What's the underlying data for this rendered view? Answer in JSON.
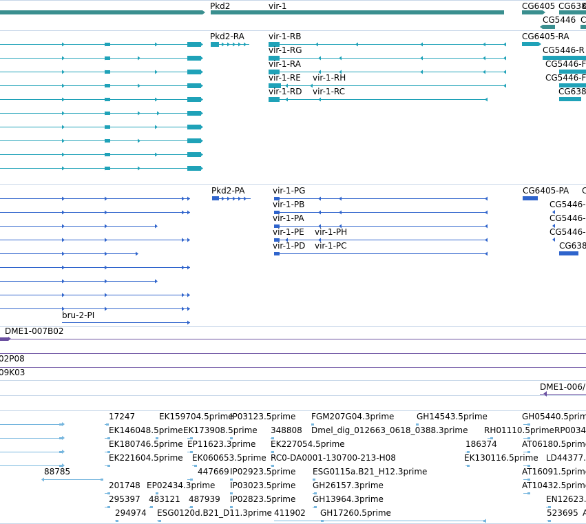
{
  "colors": {
    "gene": "#3a8f8f",
    "transcript": "#1fa2b8",
    "protein": "#2f64cc",
    "clone": "#6a4fa0",
    "est": "#76b6de",
    "divider": "#c6d6e8",
    "text": "#000000"
  },
  "tracks": {
    "gene": {
      "labels": [
        "Pkd2",
        "vir-1",
        "CG6405",
        "CG638",
        "CG5446",
        "C",
        "C"
      ]
    },
    "transcript": {
      "labels": [
        "Pkd2-RA",
        "vir-1-RB",
        "vir-1-RG",
        "vir-1-RA",
        "vir-1-RE",
        "vir-1-RH",
        "vir-1-RD",
        "vir-1-RC",
        "CG6405-RA",
        "CG5446-R",
        "CG5446-F",
        "CG5446-F",
        "CG638"
      ]
    },
    "protein": {
      "labels": [
        "Pkd2-PA",
        "vir-1-PG",
        "vir-1-PB",
        "vir-1-PA",
        "vir-1-PE",
        "vir-1-PH",
        "vir-1-PD",
        "vir-1-PC",
        "CG6405-PA",
        "C",
        "CG5446-",
        "CG5446-",
        "CG5446-",
        "CG638",
        "bru-2-PI"
      ]
    },
    "clone": {
      "labels": [
        "DME1-007B02",
        "02P08",
        "09K03",
        "DME1-006/"
      ]
    },
    "est": {
      "labels": [
        "17247",
        "EK159704.5prime",
        "IP03123.5prime",
        "FGM207G04.3prime",
        "GH14543.5prime",
        "GH05440.5prime",
        "EK146048.5prime",
        "EK173908.5prime",
        "348808",
        "Dmel_dig_012663_0618_0388.3prime",
        "RH01110.5prime",
        "RP0034",
        "EK180746.5prime",
        "EP11623.3prime",
        "EK227054.5prime",
        "186374",
        "AT06180.5prime",
        "EK221604.5prime",
        "EK060653.5prime",
        "RC0-DA0001-130700-213-H08",
        "EK130116.5prime",
        "LD44377.",
        "88785",
        "447669",
        "IP02923.5prime",
        "ESG0115a.B21_H12.3prime",
        "AT16091.5prime",
        "201748",
        "EP02434.3prime",
        "IP03023.5prime",
        "GH26157.3prime",
        "AT10432.5prime",
        "295397",
        "483121",
        "487939",
        "IP02823.5prime",
        "GH13964.3prime",
        "EN12623.",
        "294974",
        "ESG0120d.B21_D11.3prime",
        "411902",
        "GH17260.5prime",
        "523695",
        "A"
      ]
    }
  }
}
